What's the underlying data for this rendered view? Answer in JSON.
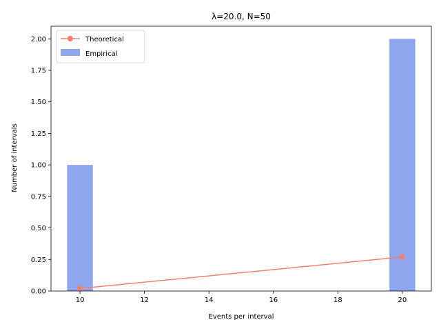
{
  "chart_data": {
    "type": "bar",
    "title": "λ=20.0, N=50",
    "xlabel": "Events per interval",
    "ylabel": "Number of intervals",
    "xlim": [
      9.1,
      20.9
    ],
    "ylim": [
      0,
      2.1
    ],
    "x_ticks": [
      10,
      12,
      14,
      16,
      18,
      20
    ],
    "x_tick_labels": [
      "10",
      "12",
      "14",
      "16",
      "18",
      "20"
    ],
    "y_ticks": [
      0,
      0.25,
      0.5,
      0.75,
      1.0,
      1.25,
      1.5,
      1.75,
      2.0
    ],
    "y_tick_labels": [
      "0.00",
      "0.25",
      "0.50",
      "0.75",
      "1.00",
      "1.25",
      "1.50",
      "1.75",
      "2.00"
    ],
    "grid": false,
    "legend_position": "top-left",
    "series": [
      {
        "name": "Empirical",
        "kind": "bar",
        "x": [
          10,
          20
        ],
        "values": [
          1,
          2
        ],
        "bar_width": 0.8,
        "color": "#8fa6ee"
      },
      {
        "name": "Theoretical",
        "kind": "line",
        "x": [
          10,
          20
        ],
        "values": [
          0.02,
          0.27
        ],
        "color": "#f08070",
        "marker": "circle"
      }
    ]
  }
}
